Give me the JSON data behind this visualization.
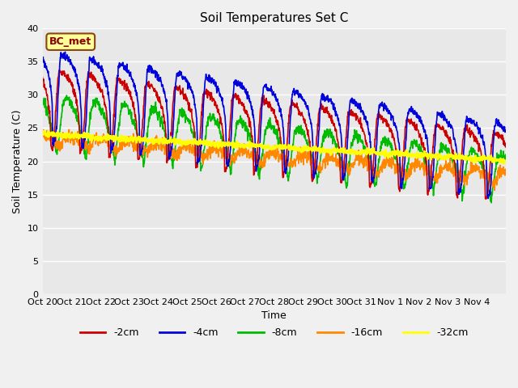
{
  "title": "Soil Temperatures Set C",
  "xlabel": "Time",
  "ylabel": "Soil Temperature (C)",
  "ylim": [
    0,
    40
  ],
  "yticks": [
    0,
    5,
    10,
    15,
    20,
    25,
    30,
    35,
    40
  ],
  "plot_bg_color": "#e8e8e8",
  "fig_bg_color": "#f0f0f0",
  "annotation_text": "BC_met",
  "annotation_bg": "#ffff99",
  "annotation_border": "#8b4513",
  "colors": {
    "-2cm": "#cc0000",
    "-4cm": "#0000dd",
    "-8cm": "#00bb00",
    "-16cm": "#ff8800",
    "-32cm": "#ffff00"
  },
  "x_tick_labels": [
    "Oct 20",
    "Oct 21",
    "Oct 22",
    "Oct 23",
    "Oct 24",
    "Oct 25",
    "Oct 26",
    "Oct 27",
    "Oct 28",
    "Oct 29",
    "Oct 30",
    "Oct 31",
    "Nov 1",
    "Nov 2",
    "Nov 3",
    "Nov 4"
  ],
  "n_days": 16,
  "grid_color": "#ffffff",
  "linewidth": 1.2
}
